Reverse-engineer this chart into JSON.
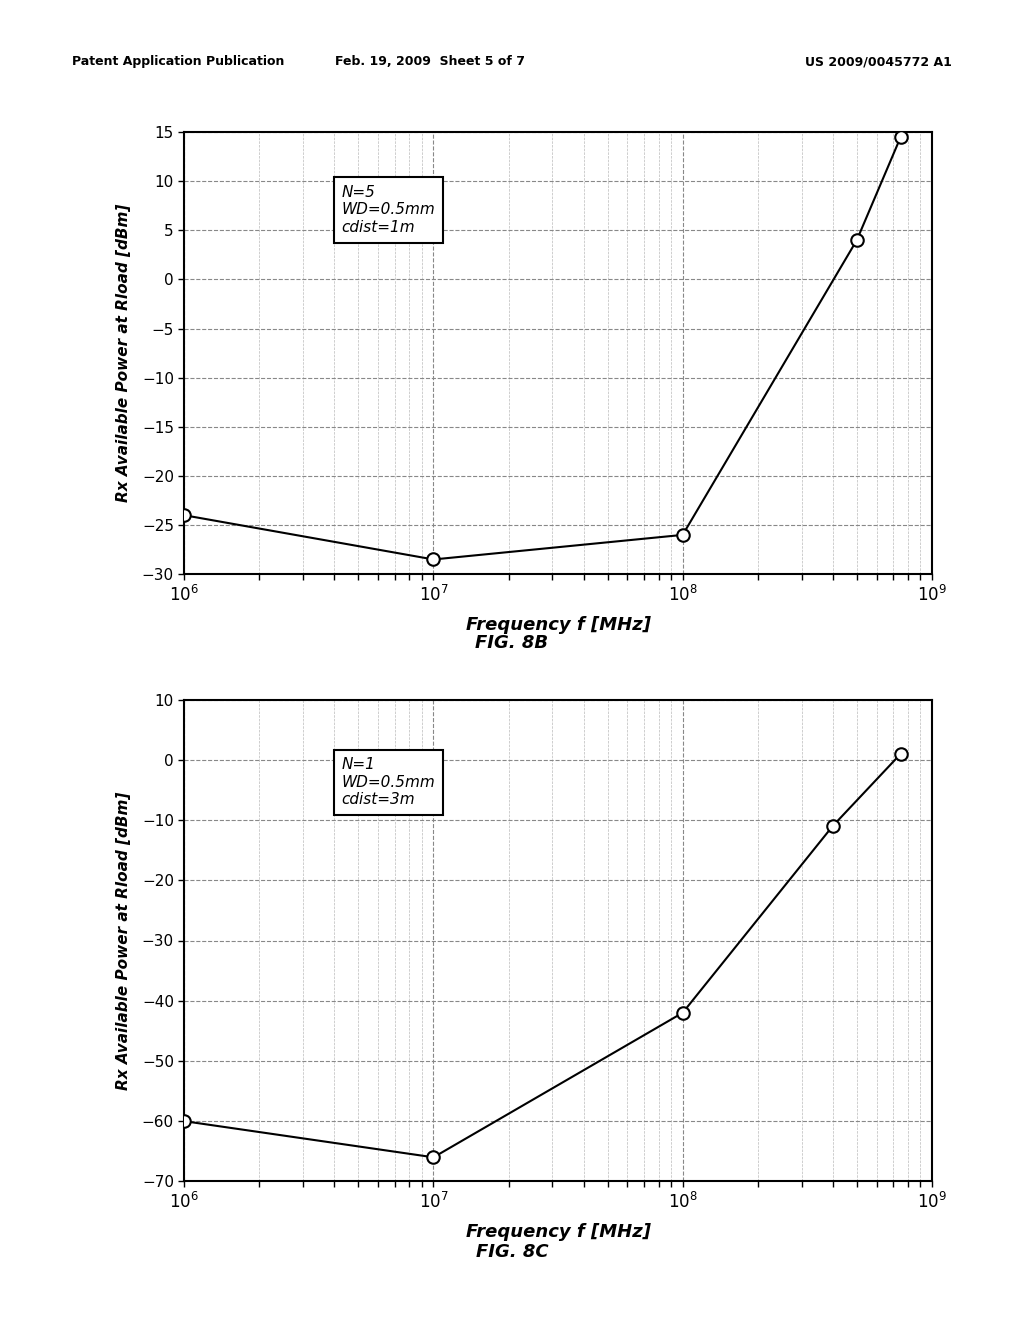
{
  "fig8b": {
    "title": "FIG. 8B",
    "annotation": "N=5\nWD=0.5mm\ncdist=1m",
    "ylabel": "Rx Available Power at Rload [dBm]",
    "xlabel": "Frequency f [MHz]",
    "ylim": [
      -30,
      15
    ],
    "yticks": [
      -30,
      -25,
      -20,
      -15,
      -10,
      -5,
      0,
      5,
      10,
      15
    ],
    "x": [
      1000000.0,
      10000000.0,
      100000000.0,
      500000000.0,
      750000000.0
    ],
    "y": [
      -24,
      -28.5,
      -26,
      4,
      14.5
    ],
    "marker_indices": [
      0,
      1,
      2,
      3,
      4
    ]
  },
  "fig8c": {
    "title": "FIG. 8C",
    "annotation": "N=1\nWD=0.5mm\ncdist=3m",
    "ylabel": "Rx Available Power at Rload [dBm]",
    "xlabel": "Frequency f [MHz]",
    "ylim": [
      -70,
      10
    ],
    "yticks": [
      -70,
      -60,
      -50,
      -40,
      -30,
      -20,
      -10,
      0,
      10
    ],
    "x": [
      1000000.0,
      10000000.0,
      100000000.0,
      400000000.0,
      750000000.0
    ],
    "y": [
      -60,
      -66,
      -42,
      -11,
      1
    ],
    "marker_indices": [
      0,
      1,
      2,
      3,
      4
    ]
  },
  "header_left": "Patent Application Publication",
  "header_center": "Feb. 19, 2009  Sheet 5 of 7",
  "header_right": "US 2009/0045772 A1",
  "bg_color": "#ffffff",
  "line_color": "#000000",
  "grid_major_color": "#888888",
  "grid_minor_color": "#bbbbbb"
}
